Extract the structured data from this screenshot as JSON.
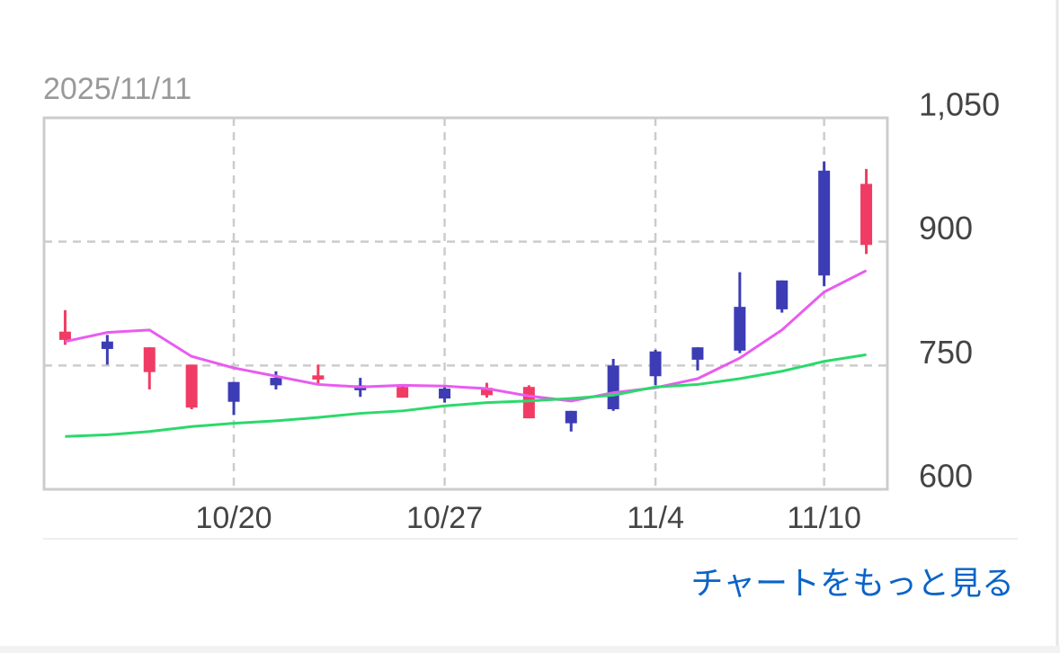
{
  "date": "2025/11/11",
  "link": "チャートをもっと見る",
  "chart_data": {
    "type": "candlestick",
    "categories": [
      null,
      null,
      null,
      null,
      "10/20",
      null,
      null,
      null,
      null,
      "10/27",
      null,
      null,
      null,
      null,
      "11/4",
      null,
      null,
      null,
      "11/10",
      null
    ],
    "open": [
      791,
      770,
      772,
      751,
      706,
      726,
      738,
      720,
      724,
      710,
      723,
      724,
      680,
      697,
      737,
      757,
      768,
      818,
      859,
      970
    ],
    "close": [
      781,
      779,
      742,
      699,
      730,
      735,
      733,
      726,
      711,
      722,
      714,
      686,
      695,
      750,
      767,
      772,
      821,
      853,
      986,
      896
    ],
    "high": [
      817,
      787,
      772,
      751,
      730,
      743,
      751,
      735,
      726,
      726,
      729,
      726,
      695,
      758,
      769,
      772,
      863,
      853,
      997,
      988
    ],
    "low": [
      775,
      751,
      721,
      697,
      690,
      721,
      726,
      712,
      711,
      705,
      711,
      686,
      670,
      695,
      726,
      744,
      765,
      814,
      846,
      885
    ],
    "up_color": "#3c3cb4",
    "down_color": "#f03c64",
    "series": [
      {
        "color": "#e85cf0",
        "values": [
          779,
          790,
          793,
          761,
          747,
          737,
          727,
          724,
          726,
          725,
          722,
          713,
          707,
          717,
          723,
          734,
          759,
          793,
          839,
          865
        ]
      },
      {
        "color": "#2bd96b",
        "values": [
          664,
          666,
          670,
          676,
          680,
          683,
          687,
          692,
          695,
          701,
          705,
          707,
          710,
          714,
          724,
          727,
          734,
          743,
          755,
          763
        ]
      }
    ],
    "ylim": [
      600,
      1050
    ],
    "yticks": [
      600,
      750,
      900,
      {
        "value": 1050,
        "label": "1,050"
      }
    ],
    "grid": true
  }
}
